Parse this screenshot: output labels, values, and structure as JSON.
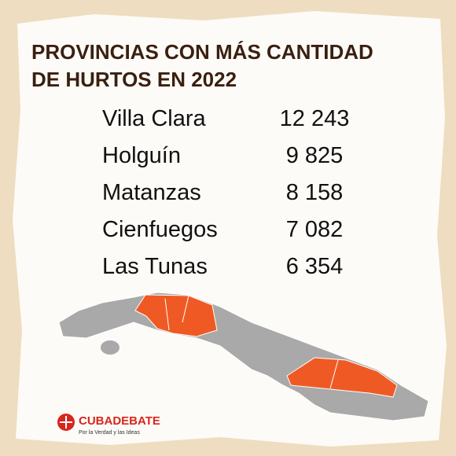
{
  "header": {
    "title": [
      "PROVINCIAS CON MÁS CANTIDAD",
      "DE HURTOS EN 2022"
    ]
  },
  "table": {
    "rows": [
      [
        "Villa Clara",
        "12 243"
      ],
      [
        "Holguín",
        "9 825"
      ],
      [
        "Matanzas",
        "8 158"
      ],
      [
        "Cienfuegos",
        "7 082"
      ],
      [
        "Las Tunas",
        "6 354"
      ]
    ]
  },
  "logo": {
    "name": "CUBADEBATE",
    "tagline": "Por la Verdad y las Ideas"
  }
}
